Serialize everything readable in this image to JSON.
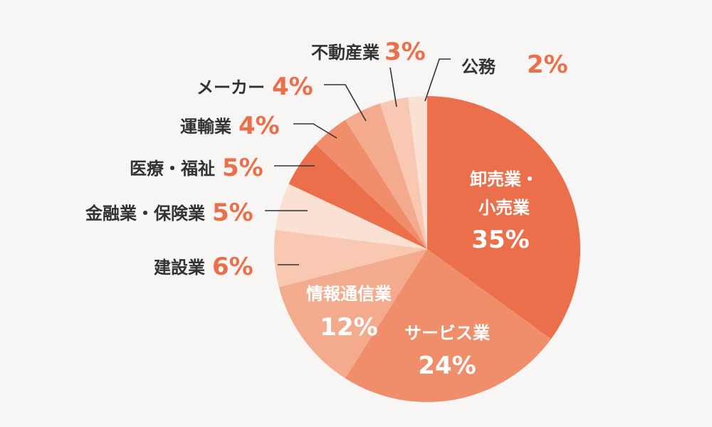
{
  "chart_data": {
    "type": "pie",
    "start": "12 o'clock, clockwise",
    "slices": [
      {
        "label": "卸売業・小売業",
        "value": 35,
        "pct_text": "35%",
        "color": "#ea6f4a"
      },
      {
        "label": "サービス業",
        "value": 24,
        "pct_text": "24%",
        "color": "#f08d6a"
      },
      {
        "label": "情報通信業",
        "value": 12,
        "pct_text": "12%",
        "color": "#f4aa8d"
      },
      {
        "label": "建設業",
        "value": 6,
        "pct_text": "6%",
        "color": "#f8c8b2"
      },
      {
        "label": "金融業・保険業",
        "value": 5,
        "pct_text": "5%",
        "color": "#fbe1d4"
      },
      {
        "label": "医療・福祉",
        "value": 5,
        "pct_text": "5%",
        "color": "#ea6f4a"
      },
      {
        "label": "運輸業",
        "value": 4,
        "pct_text": "4%",
        "color": "#f08d6a"
      },
      {
        "label": "メーカー",
        "value": 4,
        "pct_text": "4%",
        "color": "#f4aa8d"
      },
      {
        "label": "不動産業",
        "value": 3,
        "pct_text": "3%",
        "color": "#f8c8b2"
      },
      {
        "label": "公務",
        "value": 2,
        "pct_text": "2%",
        "color": "#fbe1d4"
      }
    ]
  }
}
